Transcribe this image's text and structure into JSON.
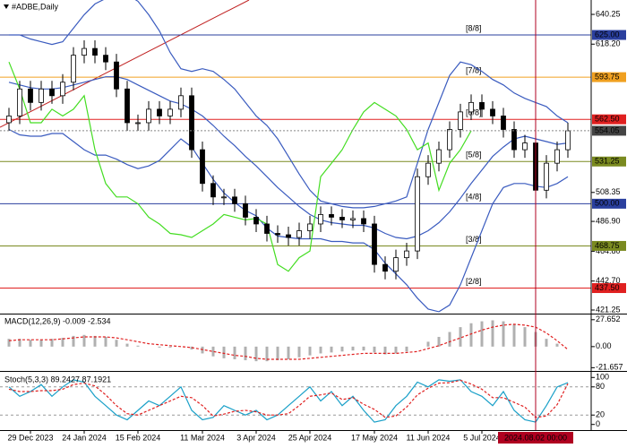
{
  "chart_data": [
    {
      "type": "candlestick",
      "title": "#ADBE,Daily",
      "categories": [
        null,
        null,
        "29 Dec 2023",
        null,
        null,
        null,
        null,
        "24 Jan 2024",
        null,
        null,
        null,
        null,
        "15 Feb 2024",
        null,
        null,
        null,
        null,
        null,
        "11 Mar 2024",
        null,
        null,
        null,
        null,
        "3 Apr 2024",
        null,
        null,
        null,
        null,
        "25 Apr 2024",
        null,
        null,
        null,
        null,
        null,
        "17 May 2024",
        null,
        null,
        null,
        null,
        "11 Jun 2024",
        null,
        null,
        null,
        null,
        "5 Jul 2024",
        null,
        null,
        null,
        null,
        "2024.08.02 00:00",
        null,
        null,
        null
      ],
      "candles": {
        "open": [
          560,
          565,
          585,
          575,
          585,
          580,
          590,
          610,
          615,
          610,
          605,
          585,
          560,
          560,
          570,
          565,
          570,
          580,
          540,
          515,
          505,
          505,
          500,
          490,
          485,
          478,
          477,
          475,
          480,
          485,
          492,
          490,
          488,
          489,
          485,
          455,
          450,
          460,
          465,
          520,
          530,
          540,
          555,
          568,
          575,
          570,
          565,
          555,
          540,
          545,
          510,
          530,
          540
        ],
        "high": [
          571,
          591,
          591,
          591,
          591,
          596,
          616,
          621,
          621,
          616,
          611,
          591,
          566,
          576,
          576,
          576,
          586,
          586,
          546,
          521,
          511,
          511,
          506,
          496,
          491,
          484,
          483,
          486,
          491,
          498,
          498,
          496,
          495,
          495,
          491,
          461,
          466,
          471,
          526,
          536,
          546,
          561,
          574,
          581,
          581,
          576,
          571,
          561,
          551,
          551,
          536,
          546,
          560
        ],
        "low": [
          554,
          559,
          569,
          569,
          574,
          574,
          584,
          604,
          604,
          599,
          579,
          554,
          554,
          554,
          559,
          559,
          564,
          534,
          509,
          499,
          499,
          494,
          484,
          479,
          472,
          471,
          469,
          469,
          474,
          479,
          484,
          482,
          482,
          479,
          449,
          444,
          444,
          454,
          459,
          514,
          524,
          534,
          549,
          562,
          564,
          559,
          549,
          534,
          534,
          504,
          504,
          524,
          534
        ],
        "close": [
          565,
          585,
          575,
          585,
          580,
          590,
          610,
          615,
          610,
          605,
          585,
          560,
          560,
          570,
          565,
          570,
          580,
          540,
          515,
          505,
          505,
          500,
          490,
          485,
          478,
          477,
          475,
          480,
          485,
          492,
          490,
          488,
          489,
          485,
          455,
          450,
          460,
          465,
          520,
          530,
          540,
          555,
          568,
          575,
          570,
          565,
          555,
          540,
          545,
          510,
          530,
          540,
          554
        ],
        "color": "#000000"
      },
      "overlays": [
        {
          "color": "#3a5bbf",
          "values": [
            625,
            625,
            622,
            620,
            618,
            620,
            630,
            640,
            648,
            652,
            655,
            655,
            650,
            640,
            628,
            612,
            600,
            598,
            600,
            598,
            592,
            585,
            575,
            565,
            558,
            548,
            535,
            522,
            510,
            502,
            500,
            498,
            497,
            497,
            498,
            500,
            502,
            505,
            530,
            555,
            575,
            595,
            605,
            603,
            598,
            592,
            588,
            582,
            578,
            575,
            572,
            565,
            560
          ]
        },
        {
          "color": "#3a5bbf",
          "values": [
            590,
            588,
            586,
            585,
            585,
            586,
            588,
            590,
            592,
            594,
            594,
            592,
            588,
            584,
            580,
            576,
            574,
            570,
            565,
            558,
            550,
            543,
            535,
            528,
            520,
            512,
            505,
            498,
            492,
            488,
            486,
            485,
            484,
            484,
            482,
            478,
            475,
            474,
            476,
            480,
            486,
            494,
            504,
            515,
            525,
            535,
            542,
            548,
            550,
            548,
            546,
            544,
            545
          ]
        },
        {
          "color": "#3a5bbf",
          "values": [
            555,
            551,
            550,
            550,
            552,
            552,
            546,
            540,
            536,
            536,
            533,
            529,
            526,
            528,
            532,
            540,
            548,
            542,
            530,
            518,
            508,
            501,
            495,
            491,
            482,
            476,
            475,
            474,
            474,
            474,
            472,
            472,
            471,
            471,
            466,
            456,
            448,
            440,
            430,
            422,
            420,
            425,
            440,
            460,
            480,
            500,
            512,
            515,
            515,
            513,
            512,
            515,
            520
          ]
        },
        {
          "color": "#44dd22",
          "values": [
            605,
            585,
            560,
            560,
            570,
            565,
            570,
            580,
            540,
            515,
            505,
            505,
            500,
            490,
            485,
            478,
            477,
            475,
            480,
            485,
            492,
            490,
            488,
            489,
            485,
            455,
            450,
            460,
            465,
            520,
            530,
            540,
            555,
            568,
            575,
            570,
            565,
            555,
            540,
            545,
            510,
            530,
            540,
            554,
            null,
            null,
            null,
            null,
            null,
            null,
            null,
            null,
            null
          ]
        }
      ],
      "ylim": [
        418.6,
        650.9
      ],
      "yticks": [
        640.25,
        {
          "value": 618.2,
          "label": "618.20"
        },
        508.35,
        {
          "value": 486.9,
          "label": "486.90"
        },
        {
          "value": 464.8,
          "label": "464.80"
        },
        {
          "value": 442.7,
          "label": "442.70"
        },
        421.25
      ],
      "levels": [
        {
          "value": 625,
          "label": "625.00",
          "tag": "[8/8]",
          "color": "#2a3f9e"
        },
        {
          "value": 593.75,
          "label": "593.75",
          "tag": "[7/8]",
          "color": "#f0a020"
        },
        {
          "value": 562.5,
          "label": "562.50",
          "tag": "[6/8]",
          "color": "#e02020"
        },
        {
          "value": 531.25,
          "label": "531.25",
          "tag": "[5/8]",
          "color": "#7a8a20"
        },
        {
          "value": 500,
          "label": "500.00",
          "tag": "[4/8]",
          "color": "#2a3f9e"
        },
        {
          "value": 468.75,
          "label": "468.75",
          "tag": "[3/8]",
          "color": "#7a8a20"
        },
        {
          "value": 437.5,
          "label": "437.50",
          "tag": "[2/8]",
          "color": "#e02020"
        }
      ],
      "current_price": {
        "value": 554.05,
        "label": "554.05"
      },
      "vline": {
        "index": 49,
        "color": "#b00020"
      }
    },
    {
      "type": "macd",
      "title": "MACD(12,26,9) -0.009 -2.534",
      "histogram": [
        8,
        8,
        7,
        7,
        8,
        9,
        11,
        12,
        11,
        10,
        7,
        3,
        1,
        0,
        -1,
        -1,
        0,
        -3,
        -7,
        -10,
        -12,
        -13,
        -14,
        -15,
        -15,
        -14,
        -13,
        -11,
        -9,
        -7,
        -6,
        -5,
        -4,
        -4,
        -6,
        -8,
        -7,
        -5,
        0,
        5,
        10,
        15,
        20,
        24,
        26,
        27,
        26,
        23,
        20,
        15,
        8,
        3,
        0
      ],
      "signal": [
        6,
        7,
        7,
        7,
        7,
        8,
        9,
        10,
        10,
        10,
        9,
        7,
        5,
        3,
        2,
        1,
        0,
        -1,
        -3,
        -5,
        -7,
        -9,
        -10,
        -12,
        -13,
        -13,
        -13,
        -13,
        -12,
        -11,
        -10,
        -9,
        -8,
        -7,
        -7,
        -7,
        -7,
        -6,
        -5,
        -2,
        1,
        5,
        9,
        13,
        17,
        20,
        22,
        23,
        22,
        20,
        14,
        6,
        -3
      ],
      "hist_color": "#b0b0b0",
      "signal_color": "#e02020",
      "ylim": [
        -25,
        33
      ],
      "yticks": [
        27.652,
        {
          "value": 0,
          "label": "0.00"
        },
        -21.657
      ]
    },
    {
      "type": "stoch",
      "title": "Stoch(5,3,3) 89.2427 87.1921",
      "k": [
        80,
        60,
        70,
        85,
        60,
        80,
        95,
        90,
        60,
        40,
        20,
        10,
        30,
        50,
        40,
        60,
        80,
        30,
        10,
        15,
        40,
        30,
        20,
        30,
        10,
        20,
        40,
        60,
        80,
        50,
        70,
        40,
        60,
        30,
        5,
        10,
        40,
        60,
        90,
        80,
        95,
        92,
        95,
        70,
        60,
        40,
        70,
        30,
        10,
        5,
        40,
        80,
        89
      ],
      "d": [
        75,
        70,
        70,
        72,
        72,
        75,
        85,
        88,
        82,
        63,
        40,
        23,
        20,
        30,
        40,
        50,
        60,
        57,
        40,
        18,
        22,
        28,
        30,
        27,
        20,
        20,
        23,
        40,
        60,
        63,
        67,
        53,
        57,
        43,
        32,
        15,
        18,
        37,
        63,
        77,
        88,
        89,
        94,
        86,
        75,
        57,
        57,
        47,
        37,
        15,
        18,
        42,
        87
      ],
      "k_color": "#1aa0c8",
      "d_color": "#e02020",
      "ylim": [
        -12,
        112
      ],
      "yticks": [
        100,
        80,
        20,
        0
      ],
      "guides": [
        80,
        20
      ]
    }
  ]
}
